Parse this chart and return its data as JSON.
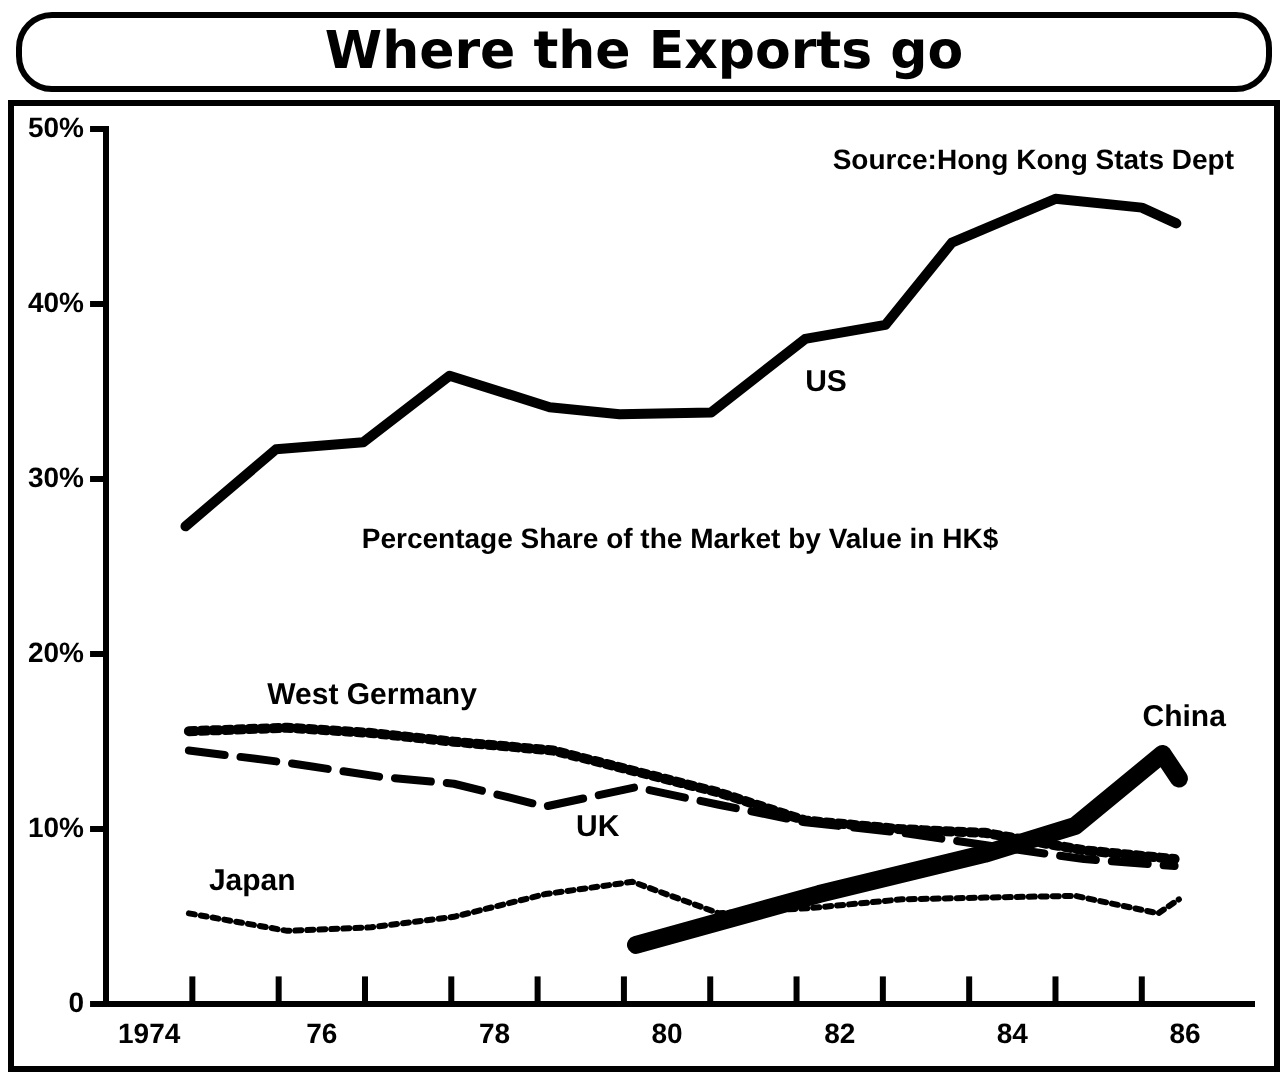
{
  "chart_data": {
    "type": "line",
    "title": "Where the Exports go",
    "subtitle": "Percentage Share of the Market by Value in HK$",
    "annotations": [
      "Source:Hong Kong Stats Dept"
    ],
    "xlim": [
      1973.5,
      1986.8
    ],
    "xticks": [
      {
        "value": 1974,
        "label": "1974"
      },
      {
        "value": 1974.5,
        "label": null
      },
      {
        "value": 1975.5,
        "label": null
      },
      {
        "value": 1976,
        "label": "76"
      },
      {
        "value": 1976.5,
        "label": null
      },
      {
        "value": 1977.5,
        "label": null
      },
      {
        "value": 1978,
        "label": "78"
      },
      {
        "value": 1978.5,
        "label": null
      },
      {
        "value": 1979.5,
        "label": null
      },
      {
        "value": 1980,
        "label": "80"
      },
      {
        "value": 1980.5,
        "label": null
      },
      {
        "value": 1981.5,
        "label": null
      },
      {
        "value": 1982,
        "label": "82"
      },
      {
        "value": 1982.5,
        "label": null
      },
      {
        "value": 1983.5,
        "label": null
      },
      {
        "value": 1984,
        "label": "84"
      },
      {
        "value": 1984.5,
        "label": null
      },
      {
        "value": 1985.5,
        "label": null
      },
      {
        "value": 1986,
        "label": "86"
      }
    ],
    "ylim": [
      0,
      50
    ],
    "yticks": [
      {
        "value": 0,
        "label": "0"
      },
      {
        "value": 10,
        "label": "10%"
      },
      {
        "value": 20,
        "label": "20%"
      },
      {
        "value": 30,
        "label": "30%"
      },
      {
        "value": 40,
        "label": "40%"
      },
      {
        "value": 50,
        "label": "50%"
      }
    ],
    "grid": false,
    "legend": false,
    "marker": "none",
    "series": [
      {
        "name": "US",
        "color": "#000000",
        "line_style": "solid",
        "x": [
          1974.42,
          1975.47,
          1976.48,
          1977.48,
          1978.64,
          1979.45,
          1980.51,
          1981.6,
          1982.53,
          1983.3,
          1984.5,
          1985.5,
          1985.9
        ],
        "values": [
          27.3,
          31.7,
          32.1,
          35.9,
          34.1,
          33.7,
          33.8,
          38.0,
          38.8,
          43.5,
          46.0,
          45.5,
          44.6
        ]
      },
      {
        "name": "West Germany",
        "color": "#000000",
        "line_style": "dotted",
        "x": [
          1974.46,
          1975.6,
          1976.57,
          1977.53,
          1978.68,
          1979.64,
          1980.6,
          1981.6,
          1982.72,
          1983.68,
          1984.83,
          1985.88
        ],
        "values": [
          15.6,
          15.8,
          15.5,
          15.0,
          14.5,
          13.3,
          12.1,
          10.5,
          10.0,
          9.8,
          8.8,
          8.3
        ]
      },
      {
        "name": "UK",
        "color": "#000000",
        "line_style": "dashed",
        "x": [
          1974.46,
          1975.6,
          1976.67,
          1977.53,
          1978.59,
          1979.64,
          1980.6,
          1981.6,
          1982.72,
          1983.68,
          1984.83,
          1985.88
        ],
        "values": [
          14.5,
          13.8,
          13.0,
          12.6,
          11.3,
          12.4,
          11.4,
          10.4,
          9.8,
          9.1,
          8.3,
          7.9
        ]
      },
      {
        "name": "Japan",
        "color": "#000000",
        "line_style": "dotted",
        "x": [
          1974.46,
          1975.6,
          1976.57,
          1977.53,
          1978.59,
          1979.6,
          1980.6,
          1981.66,
          1982.72,
          1983.68,
          1984.73,
          1985.69,
          1985.93
        ],
        "values": [
          5.2,
          4.2,
          4.4,
          5.0,
          6.3,
          7.0,
          5.2,
          5.5,
          6.0,
          6.1,
          6.2,
          5.2,
          6.0
        ]
      },
      {
        "name": "China",
        "color": "#000000",
        "line_style": "solid",
        "x": [
          1979.64,
          1981.76,
          1983.68,
          1984.73,
          1985.74,
          1985.93
        ],
        "values": [
          3.4,
          6.3,
          8.6,
          10.2,
          14.3,
          12.9
        ]
      }
    ]
  }
}
